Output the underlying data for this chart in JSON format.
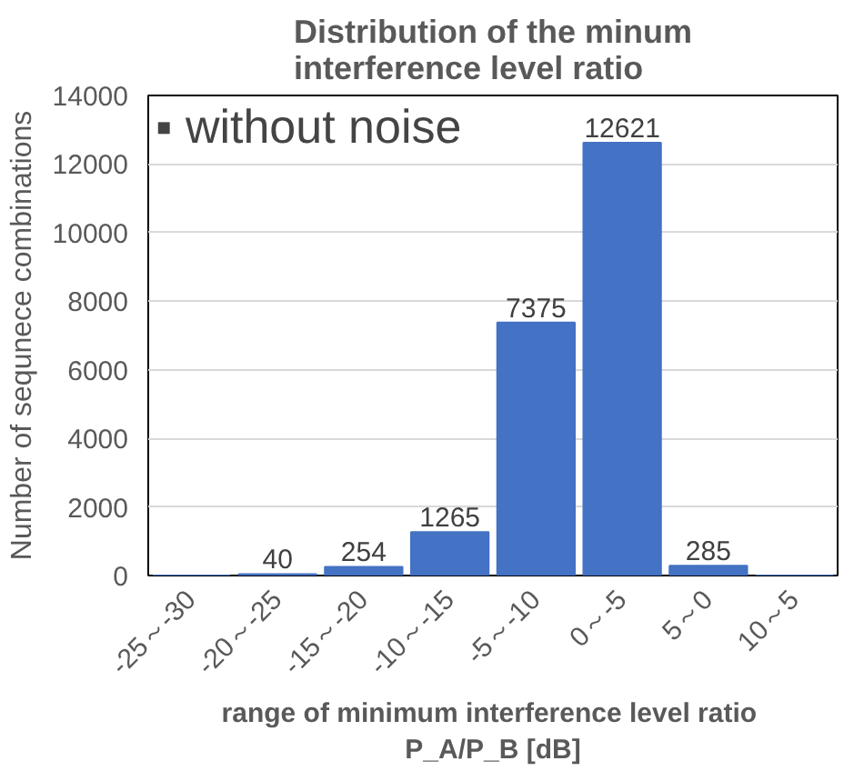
{
  "chart_data": {
    "type": "bar",
    "title": "Distribution of the minum\ninterference level ratio",
    "xlabel": "range of minimum  interference level ratio\nP_A/P_B [dB]",
    "ylabel": "Number of sequnece combinations",
    "annotations": [
      "▪ without noise"
    ],
    "categories": [
      "-25～-30",
      "-20～-25",
      "-15～-20",
      "-10～-15",
      "-5～-10",
      "0～-5",
      "5～0",
      "10～5"
    ],
    "values": [
      0,
      40,
      254,
      1265,
      7375,
      12621,
      285,
      0
    ],
    "value_labels": [
      null,
      "40",
      "254",
      "1265",
      "7375",
      "12621",
      "285",
      null
    ],
    "color": "#4472c4",
    "ylim": [
      0,
      14000
    ],
    "yticks": [
      0,
      2000,
      4000,
      6000,
      8000,
      10000,
      12000,
      14000
    ],
    "grid": "y"
  }
}
